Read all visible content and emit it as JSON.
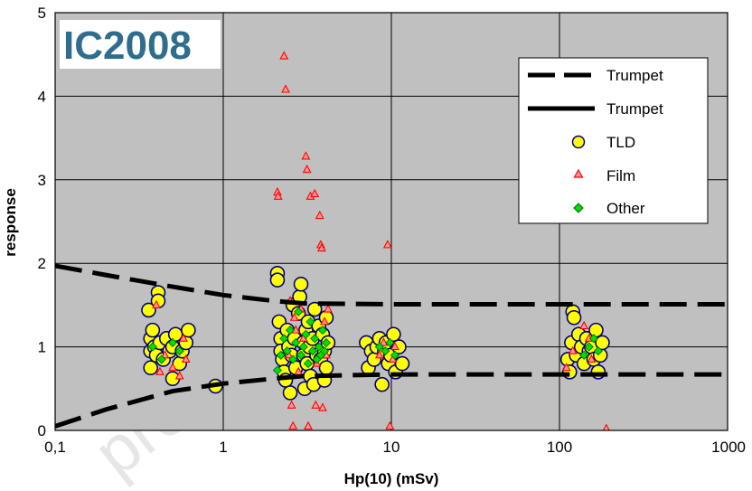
{
  "chart_data": {
    "type": "scatter",
    "badge": "IC2008",
    "watermark": "preliminary results",
    "xlabel": "Hp(10) (mSv)",
    "ylabel": "response",
    "xscale": "log",
    "xlim": [
      0.1,
      1000
    ],
    "ylim": [
      0,
      5
    ],
    "grid": true,
    "x_ticks": [
      {
        "value": 0.1,
        "label": "0,1"
      },
      {
        "value": 1,
        "label": "1"
      },
      {
        "value": 10,
        "label": "10"
      },
      {
        "value": 100,
        "label": "100"
      },
      {
        "value": 1000,
        "label": "1000"
      }
    ],
    "y_ticks": [
      {
        "value": 0,
        "label": "0"
      },
      {
        "value": 1,
        "label": "1"
      },
      {
        "value": 2,
        "label": "2"
      },
      {
        "value": 3,
        "label": "3"
      },
      {
        "value": 4,
        "label": "4"
      },
      {
        "value": 5,
        "label": "5"
      }
    ],
    "legend_position": "top-right",
    "colors": {
      "plot_background": "#c0c0c0",
      "grid": "#000000",
      "trumpet": "#000000",
      "tld_fill": "#ffff00",
      "tld_edge": "#000080",
      "film_fill": "#ff9999",
      "film_edge": "#ff0000",
      "other_fill": "#00dd00",
      "other_edge": "#006600",
      "badge_text": "#2e6d8e",
      "badge_bg": "#ffffff"
    },
    "series": [
      {
        "name": "Trumpet",
        "kind": "line",
        "style": "dashed",
        "x": [
          0.1,
          0.2,
          0.5,
          1,
          2,
          3,
          10,
          100,
          1000
        ],
        "y": [
          1.97,
          1.86,
          1.72,
          1.62,
          1.55,
          1.52,
          1.51,
          1.51,
          1.51
        ]
      },
      {
        "name": "Trumpet",
        "kind": "line",
        "style": "dashed",
        "x": [
          0.1,
          0.2,
          0.5,
          1,
          2,
          3,
          10,
          100,
          1000
        ],
        "y": [
          0.05,
          0.25,
          0.47,
          0.56,
          0.62,
          0.65,
          0.67,
          0.67,
          0.67
        ]
      },
      {
        "name": "TLD",
        "kind": "marker",
        "marker": "circle",
        "x": [
          0.36,
          0.37,
          0.37,
          0.37,
          0.38,
          0.39,
          0.4,
          0.41,
          0.41,
          0.42,
          0.44,
          0.46,
          0.48,
          0.5,
          0.5,
          0.52,
          0.55,
          0.57,
          0.6,
          0.62,
          0.9,
          2.1,
          2.1,
          2.15,
          2.2,
          2.2,
          2.25,
          2.3,
          2.35,
          2.4,
          2.45,
          2.5,
          2.55,
          2.6,
          2.65,
          2.7,
          2.8,
          2.85,
          2.9,
          3.0,
          3.0,
          3.05,
          3.1,
          3.15,
          3.2,
          3.25,
          3.3,
          3.4,
          3.45,
          3.5,
          3.6,
          3.7,
          3.8,
          3.9,
          4.0,
          4.0,
          4.1,
          4.1,
          4.2,
          7.1,
          7.3,
          7.6,
          7.9,
          8.2,
          8.5,
          8.8,
          9.1,
          9.3,
          9.6,
          9.9,
          10.3,
          10.6,
          11.1,
          11.6,
          112,
          115,
          118,
          120,
          122,
          126,
          130,
          135,
          140,
          145,
          150,
          155,
          160,
          165,
          170,
          175,
          180
        ],
        "y": [
          1.44,
          0.75,
          0.95,
          1.1,
          1.2,
          1.0,
          0.9,
          1.65,
          1.55,
          1.05,
          0.85,
          1.1,
          0.95,
          0.62,
          1.0,
          1.15,
          0.8,
          0.95,
          1.05,
          1.2,
          0.53,
          1.88,
          1.8,
          1.3,
          1.1,
          0.95,
          0.85,
          0.7,
          0.6,
          1.2,
          1.0,
          0.45,
          0.9,
          1.5,
          1.1,
          0.75,
          1.4,
          1.6,
          1.75,
          1.05,
          0.9,
          0.5,
          1.2,
          0.8,
          1.3,
          1.0,
          0.65,
          1.1,
          0.55,
          1.45,
          0.9,
          1.25,
          0.85,
          1.15,
          0.95,
          0.6,
          1.35,
          0.75,
          1.05,
          1.05,
          0.75,
          0.95,
          0.85,
          1.0,
          1.1,
          0.55,
          0.95,
          1.05,
          0.8,
          0.9,
          1.15,
          0.7,
          1.0,
          0.8,
          0.85,
          0.7,
          1.05,
          1.42,
          1.35,
          0.9,
          1.15,
          1.0,
          0.8,
          1.1,
          0.95,
          1.0,
          0.85,
          1.2,
          0.7,
          0.9,
          1.05
        ]
      },
      {
        "name": "Film",
        "kind": "marker",
        "marker": "triangle",
        "x": [
          0.4,
          0.42,
          0.45,
          0.5,
          0.55,
          0.58,
          0.6,
          2.1,
          2.12,
          2.3,
          2.35,
          2.45,
          2.5,
          2.55,
          2.6,
          2.65,
          2.7,
          2.8,
          2.9,
          3.0,
          3.1,
          3.15,
          3.2,
          3.3,
          3.5,
          3.55,
          3.6,
          3.75,
          3.8,
          3.85,
          3.9,
          4.0,
          4.1,
          4.2,
          8.5,
          9.0,
          9.5,
          9.8,
          10.2,
          10.5,
          110,
          120,
          140,
          150,
          155,
          190
        ],
        "y": [
          1.5,
          0.7,
          0.9,
          0.75,
          0.65,
          1.1,
          0.85,
          2.85,
          2.8,
          4.48,
          4.08,
          0.9,
          1.55,
          0.3,
          0.05,
          1.35,
          1.2,
          0.7,
          1.45,
          1.1,
          3.28,
          3.12,
          0.05,
          2.8,
          2.83,
          0.3,
          0.8,
          2.57,
          2.22,
          2.18,
          0.27,
          1.3,
          0.9,
          1.45,
          0.9,
          1.05,
          2.22,
          0.05,
          0.85,
          1.0,
          0.75,
          0.95,
          1.25,
          1.1,
          0.85,
          0.02
        ]
      },
      {
        "name": "Other",
        "kind": "marker",
        "marker": "diamond",
        "x": [
          0.38,
          0.43,
          0.5,
          0.55,
          2.1,
          2.2,
          2.3,
          2.4,
          2.5,
          2.6,
          2.7,
          2.8,
          2.9,
          3.0,
          3.1,
          3.2,
          3.3,
          3.4,
          3.5,
          3.6,
          3.7,
          3.8,
          3.9,
          4.0,
          4.1,
          8.5,
          9.2,
          9.8,
          10.5,
          140,
          150,
          160,
          170
        ],
        "y": [
          1.0,
          0.85,
          1.05,
          0.95,
          0.72,
          0.9,
          1.1,
          0.95,
          1.2,
          0.85,
          1.05,
          1.42,
          0.9,
          1.0,
          1.15,
          0.8,
          1.3,
          0.95,
          1.1,
          0.85,
          1.0,
          0.9,
          1.2,
          0.95,
          1.05,
          1.0,
          0.95,
          1.05,
          0.9,
          0.9,
          1.0,
          1.1,
          0.95
        ]
      }
    ]
  }
}
